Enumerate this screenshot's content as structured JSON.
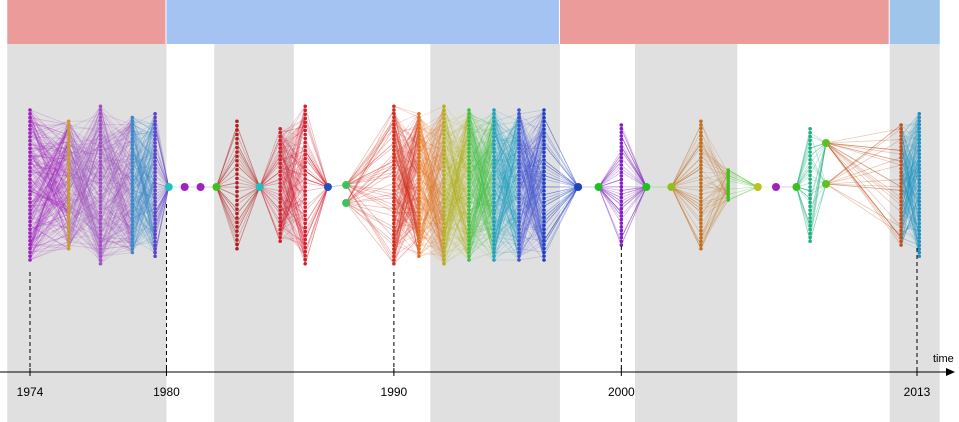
{
  "chart_data": {
    "type": "timeline-graph",
    "axis": {
      "label": "time",
      "start_year": 1973,
      "end_year": 2014
    },
    "ticks": [
      {
        "year": 1974,
        "label": "1974"
      },
      {
        "year": 1980,
        "label": "1980"
      },
      {
        "year": 1990,
        "label": "1990"
      },
      {
        "year": 2000,
        "label": "2000"
      },
      {
        "year": 2013,
        "label": "2013"
      }
    ],
    "eras": [
      {
        "from": 1973,
        "to": 1980.0,
        "color": "#ec9b9b"
      },
      {
        "from": 1980.0,
        "to": 1997.3,
        "color": "#a4c2f2"
      },
      {
        "from": 1997.3,
        "to": 2011.8,
        "color": "#ec9b9b"
      },
      {
        "from": 2011.8,
        "to": 2014,
        "color": "#9fc5ea"
      }
    ],
    "gray_periods": [
      {
        "from": 1973,
        "to": 1980.0
      },
      {
        "from": 1982.1,
        "to": 1985.6
      },
      {
        "from": 1991.6,
        "to": 1997.3
      },
      {
        "from": 2000.6,
        "to": 2005.1
      },
      {
        "from": 2011.8,
        "to": 2014
      }
    ],
    "columns": [
      {
        "year": 1974.0,
        "size": 40,
        "kind": "col",
        "spread": 1.0,
        "color": "#a020c0"
      },
      {
        "year": 1975.7,
        "size": 38,
        "kind": "col",
        "spread": 0.85,
        "color": "#c89a30"
      },
      {
        "year": 1977.1,
        "size": 44,
        "kind": "col",
        "spread": 1.05,
        "color": "#a050c0"
      },
      {
        "year": 1978.5,
        "size": 40,
        "kind": "col",
        "spread": 0.9,
        "color": "#3a8ac8"
      },
      {
        "year": 1979.5,
        "size": 40,
        "kind": "col",
        "spread": 0.95,
        "color": "#6040c8"
      },
      {
        "year": 1980.1,
        "size": 1,
        "kind": "pt",
        "spread": 0,
        "color": "#20c0c0"
      },
      {
        "year": 1980.8,
        "size": 1,
        "kind": "pt",
        "spread": 0,
        "color": "#a020c0"
      },
      {
        "year": 1981.5,
        "size": 1,
        "kind": "pt",
        "spread": 0,
        "color": "#a020c0"
      },
      {
        "year": 1982.2,
        "size": 1,
        "kind": "pt",
        "spread": 0,
        "color": "#40c020"
      },
      {
        "year": 1983.1,
        "size": 30,
        "kind": "col",
        "spread": 0.85,
        "color": "#b02020"
      },
      {
        "year": 1984.1,
        "size": 1,
        "kind": "pt",
        "spread": 0,
        "color": "#20c0c0"
      },
      {
        "year": 1985.0,
        "size": 30,
        "kind": "col",
        "spread": 0.75,
        "color": "#d02030"
      },
      {
        "year": 1986.1,
        "size": 40,
        "kind": "col",
        "spread": 1.05,
        "color": "#d02030"
      },
      {
        "year": 1987.1,
        "size": 1,
        "kind": "pt",
        "spread": 0,
        "color": "#2050c0"
      },
      {
        "year": 1987.9,
        "size": 2,
        "kind": "pt2",
        "spread": 0,
        "color": "#40c060"
      },
      {
        "year": 1990.0,
        "size": 44,
        "kind": "col",
        "spread": 1.05,
        "color": "#d03020"
      },
      {
        "year": 1991.1,
        "size": 40,
        "kind": "col",
        "spread": 0.95,
        "color": "#e07020"
      },
      {
        "year": 1992.2,
        "size": 40,
        "kind": "col",
        "spread": 1.05,
        "color": "#b0b020"
      },
      {
        "year": 1993.3,
        "size": 40,
        "kind": "col",
        "spread": 1.0,
        "color": "#40c040"
      },
      {
        "year": 1994.4,
        "size": 40,
        "kind": "col",
        "spread": 1.0,
        "color": "#20a0c0"
      },
      {
        "year": 1995.5,
        "size": 40,
        "kind": "col",
        "spread": 1.0,
        "color": "#4050d0"
      },
      {
        "year": 1996.6,
        "size": 40,
        "kind": "col",
        "spread": 1.0,
        "color": "#2040c0"
      },
      {
        "year": 1998.1,
        "size": 1,
        "kind": "pt",
        "spread": 0,
        "color": "#2040c0"
      },
      {
        "year": 1999.0,
        "size": 1,
        "kind": "pt",
        "spread": 0,
        "color": "#20c020"
      },
      {
        "year": 2000.0,
        "size": 34,
        "kind": "col",
        "spread": 0.8,
        "color": "#8020c0"
      },
      {
        "year": 2001.1,
        "size": 1,
        "kind": "pt",
        "spread": 0,
        "color": "#20c020"
      },
      {
        "year": 2002.2,
        "size": 1,
        "kind": "pt",
        "spread": 0,
        "color": "#90c020"
      },
      {
        "year": 2003.5,
        "size": 36,
        "kind": "col",
        "spread": 0.85,
        "color": "#c07020"
      },
      {
        "year": 2004.7,
        "size": 12,
        "kind": "col",
        "spread": 0.2,
        "color": "#40c020"
      },
      {
        "year": 2006.0,
        "size": 1,
        "kind": "pt",
        "spread": 0,
        "color": "#c0c020"
      },
      {
        "year": 2006.8,
        "size": 1,
        "kind": "pt",
        "spread": 0,
        "color": "#a020c0"
      },
      {
        "year": 2007.7,
        "size": 1,
        "kind": "pt",
        "spread": 0,
        "color": "#40c020"
      },
      {
        "year": 2008.3,
        "size": 30,
        "kind": "col",
        "spread": 0.75,
        "color": "#20b080"
      },
      {
        "year": 2009.0,
        "size": 2,
        "kind": "pt2s",
        "spread": 0,
        "color": "#60c020"
      },
      {
        "year": 2012.3,
        "size": 34,
        "kind": "col",
        "spread": 0.8,
        "color": "#c05020"
      },
      {
        "year": 2013.1,
        "size": 40,
        "kind": "col",
        "spread": 0.95,
        "color": "#2090c0"
      }
    ]
  }
}
